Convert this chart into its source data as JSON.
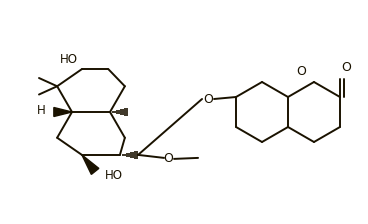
{
  "bg_color": "#ffffff",
  "line_color": "#1a1200",
  "line_width": 1.4,
  "figsize": [
    3.68,
    2.24
  ],
  "dpi": 100,
  "xlim": [
    0,
    3.68
  ],
  "ylim": [
    0,
    2.24
  ]
}
